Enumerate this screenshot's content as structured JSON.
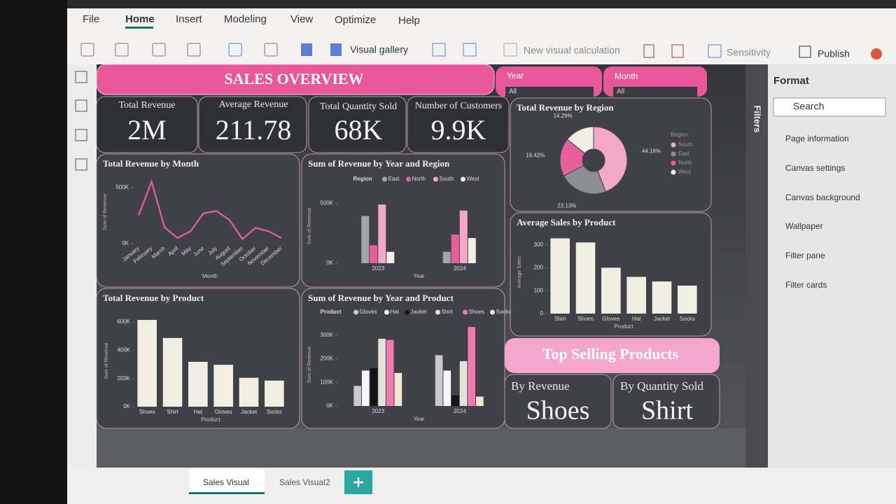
{
  "ribbon": {
    "tabs": [
      "File",
      "Home",
      "Insert",
      "Modeling",
      "View",
      "Optimize",
      "Help"
    ],
    "buttons": [
      "Visual gallery",
      "New visual calculation",
      "Sensitivity",
      "Publish"
    ]
  },
  "title": "SALES OVERVIEW",
  "slicers": [
    {
      "label": "Year",
      "value": "All"
    },
    {
      "label": "Month",
      "value": "All"
    }
  ],
  "cards": [
    {
      "label": "Total Revenue",
      "value": "2M"
    },
    {
      "label": "Average Revenue",
      "value": "211.78"
    },
    {
      "label": "Total Quantity Sold",
      "value": "68K"
    },
    {
      "label": "Number of Customers",
      "value": "9.9K"
    }
  ],
  "charts": [
    {
      "type": "line",
      "title": "Total Revenue by Month",
      "x_label": "Month",
      "y_label": "Sum of Revenue",
      "categories": [
        "January",
        "February",
        "March",
        "April",
        "May",
        "June",
        "July",
        "August",
        "September",
        "October",
        "November",
        "December"
      ],
      "values": [
        250000,
        550000,
        145000,
        50000,
        110000,
        270000,
        290000,
        210000,
        40000,
        140000,
        110000,
        50000
      ],
      "color": "#e8609a",
      "ylim": [
        0,
        560000
      ],
      "yticks": [
        {
          "value": 0,
          "label": "0K"
        },
        {
          "value": 500000,
          "label": "500K"
        }
      ]
    },
    {
      "type": "bar",
      "title": "Sum of Revenue by Year and Region",
      "x_label": "Year",
      "y_label": "Sum of Revenue",
      "legend_title": "Region",
      "categories": [
        "2023",
        "2024"
      ],
      "series": [
        {
          "name": "East",
          "color": "#a3a3ab",
          "values": [
            395000,
            95000
          ]
        },
        {
          "name": "North",
          "color": "#e8609a",
          "values": [
            150000,
            240000
          ]
        },
        {
          "name": "South",
          "color": "#f2a9c9",
          "values": [
            490000,
            440000
          ]
        },
        {
          "name": "West",
          "color": "#f1eee2",
          "values": [
            95000,
            210000
          ]
        }
      ],
      "ylim": [
        0,
        620000
      ],
      "yticks": [
        {
          "value": 0,
          "label": "0K"
        },
        {
          "value": 500000,
          "label": "500K"
        }
      ]
    },
    {
      "type": "pie",
      "title": "Total Revenue by Region",
      "legend_title": "Region",
      "categories": [
        "South",
        "East",
        "North",
        "West"
      ],
      "values": [
        44.16,
        23.13,
        18.42,
        14.29
      ],
      "value_labels": [
        "44.16%",
        "23.13%",
        "18.42%",
        "14.29%"
      ],
      "colors": [
        "#f2a9c9",
        "#8d8d95",
        "#e8609a",
        "#f1eee2"
      ]
    },
    {
      "type": "bar",
      "title": "Average Sales by Product",
      "x_label": "Product",
      "y_label": "Average Sales",
      "categories": [
        "Shirt",
        "Shoes",
        "Gloves",
        "Hat",
        "Jacket",
        "Socks"
      ],
      "values": [
        328,
        310,
        200,
        160,
        140,
        122
      ],
      "color": "#f1eee2",
      "ylim": [
        0,
        360
      ],
      "yticks": [
        0,
        100,
        200,
        300
      ]
    },
    {
      "type": "bar",
      "title": "Total Revenue by Product",
      "x_label": "Product",
      "y_label": "Sum of Revenue",
      "categories": [
        "Shoes",
        "Shirt",
        "Hat",
        "Gloves",
        "Jacket",
        "Socks"
      ],
      "values": [
        615000,
        487000,
        318000,
        297000,
        205000,
        185000
      ],
      "color": "#f1eee2",
      "ylim": [
        0,
        650000
      ],
      "yticks": [
        {
          "value": 0,
          "label": "0K"
        },
        {
          "value": 200000,
          "label": "200K"
        },
        {
          "value": 400000,
          "label": "400K"
        },
        {
          "value": 600000,
          "label": "600K"
        }
      ]
    },
    {
      "type": "bar",
      "title": "Sum of Revenue by Year and Product",
      "x_label": "Year",
      "y_label": "Sum of Revenue",
      "legend_title": "Product",
      "categories": [
        "2023",
        "2024"
      ],
      "series": [
        {
          "name": "Gloves",
          "color": "#c9c9cf",
          "values": [
            85000,
            215000
          ]
        },
        {
          "name": "Hat",
          "color": "#f7f7f7",
          "values": [
            150000,
            150000
          ]
        },
        {
          "name": "Jacket",
          "color": "#141418",
          "values": [
            160000,
            45000
          ]
        },
        {
          "name": "Shirt",
          "color": "#e4e1d8",
          "values": [
            285000,
            190000
          ]
        },
        {
          "name": "Shoes",
          "color": "#f07ab0",
          "values": [
            280000,
            335000
          ]
        },
        {
          "name": "Socks",
          "color": "#efe8cf",
          "values": [
            140000,
            40000
          ]
        }
      ],
      "ylim": [
        0,
        350000
      ],
      "yticks": [
        {
          "value": 0,
          "label": "0K"
        },
        {
          "value": 100000,
          "label": "100K"
        },
        {
          "value": 200000,
          "label": "200K"
        },
        {
          "value": 300000,
          "label": "300K"
        }
      ]
    }
  ],
  "top_selling": {
    "title": "Top Selling Products",
    "items": [
      {
        "label": "By Revenue",
        "value": "Shoes"
      },
      {
        "label": "By Quantity Sold",
        "value": "Shirt"
      }
    ]
  },
  "filters_label": "Filters",
  "format_pane": {
    "title": "Format",
    "search": "Search",
    "sections": [
      "Page information",
      "Canvas settings",
      "Canvas background",
      "Wallpaper",
      "Filter pane",
      "Filter cards"
    ]
  },
  "page_tabs": [
    "Sales Visual",
    "Sales Visual2"
  ]
}
